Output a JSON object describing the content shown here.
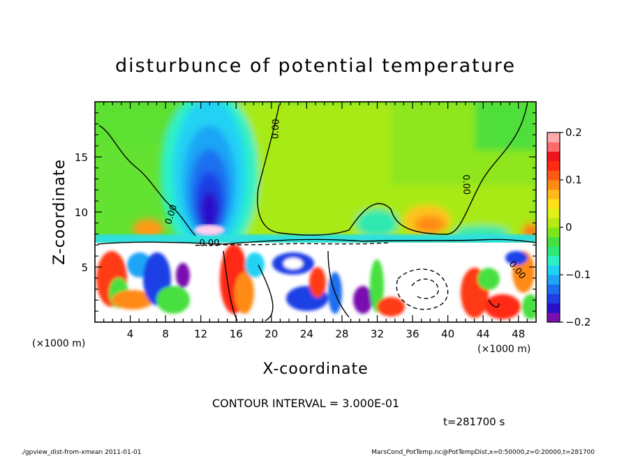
{
  "chart_data": {
    "type": "heatmap",
    "title": "disturbunce of potential temperature",
    "xlabel": "X-coordinate",
    "ylabel": "Z-coordinate",
    "x_unit": "(×1000 m)",
    "x_unit_right": "(×1000 m)",
    "xlim": [
      0,
      50
    ],
    "ylim": [
      0,
      20
    ],
    "x_ticks": [
      4,
      8,
      12,
      16,
      20,
      24,
      28,
      32,
      36,
      40,
      44,
      48
    ],
    "y_ticks": [
      5,
      10,
      15
    ],
    "colorbar": {
      "range": [
        -0.2,
        0.2
      ],
      "tick_labels": [
        "0.2",
        "0.1",
        "0",
        "−0.1",
        "−0.2"
      ],
      "tick_values": [
        0.2,
        0.1,
        0,
        -0.1,
        -0.2
      ],
      "colors": [
        "#7a0fb0",
        "#2a10c8",
        "#1f3fe6",
        "#1e6ff0",
        "#1fa4f6",
        "#22d2f4",
        "#2df0c8",
        "#2fe87a",
        "#46e040",
        "#7fe51c",
        "#b6ec14",
        "#e2f01a",
        "#ffe11a",
        "#ffb81a",
        "#ff8a14",
        "#ff5a14",
        "#ff2a12",
        "#f0141e",
        "#ff6a6a",
        "#ffaaaa"
      ]
    },
    "contour_labels": [
      "0.00",
      "0.00",
      "0.00",
      "0.00",
      "0.00"
    ],
    "contour_interval_text": "CONTOUR INTERVAL = 3.000E-01",
    "time_text": "t=281700 s"
  },
  "footer": {
    "left": "./gpview_dist-from-xmean  2011-01-01",
    "right": "MarsCond_PotTemp.nc@PotTempDist,x=0:50000,z=0:20000,t=281700"
  }
}
